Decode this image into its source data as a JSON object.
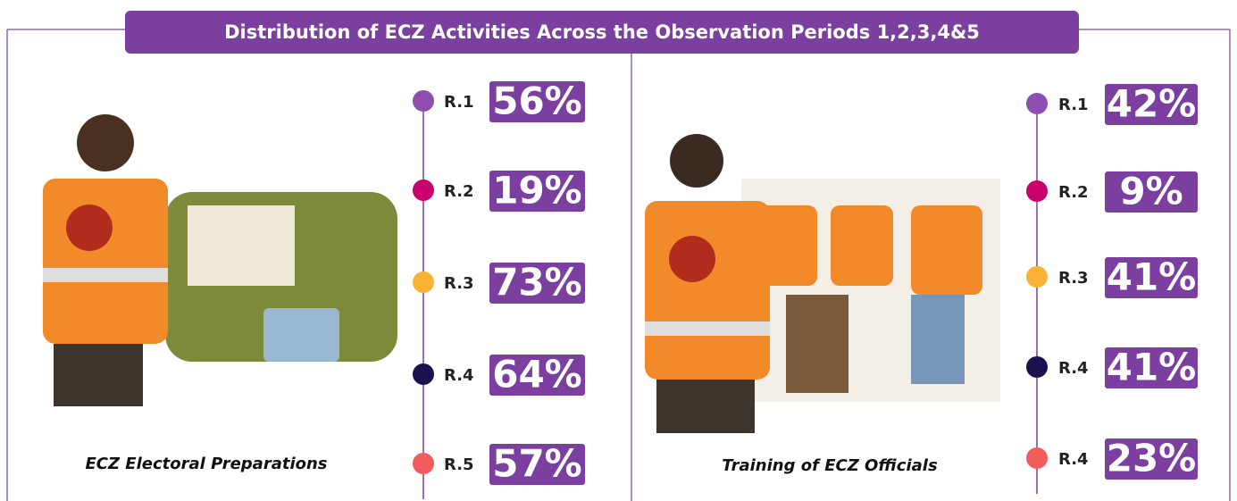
{
  "header": {
    "title": "Distribution of ECZ Activities Across the Observation Periods 1,2,3,4&5"
  },
  "panels": [
    {
      "caption": "ECZ Electoral Preparations",
      "items": [
        {
          "label": "R.1",
          "value": "56%",
          "color": "#8e4db0"
        },
        {
          "label": "R.2",
          "value": "19%",
          "color": "#c9006b"
        },
        {
          "label": "R.3",
          "value": "73%",
          "color": "#f9b233"
        },
        {
          "label": "R.4",
          "value": "64%",
          "color": "#1a1150"
        },
        {
          "label": "R.5",
          "value": "57%",
          "color": "#f25c5c"
        }
      ]
    },
    {
      "caption": "Training of ECZ Officials",
      "items": [
        {
          "label": "R.1",
          "value": "42%",
          "color": "#8e4db0"
        },
        {
          "label": "R.2",
          "value": "9%",
          "color": "#c9006b"
        },
        {
          "label": "R.3",
          "value": "41%",
          "color": "#f9b233"
        },
        {
          "label": "R.4",
          "value": "41%",
          "color": "#1a1150"
        },
        {
          "label": "R.4",
          "value": "23%",
          "color": "#f25c5c"
        }
      ]
    }
  ]
}
